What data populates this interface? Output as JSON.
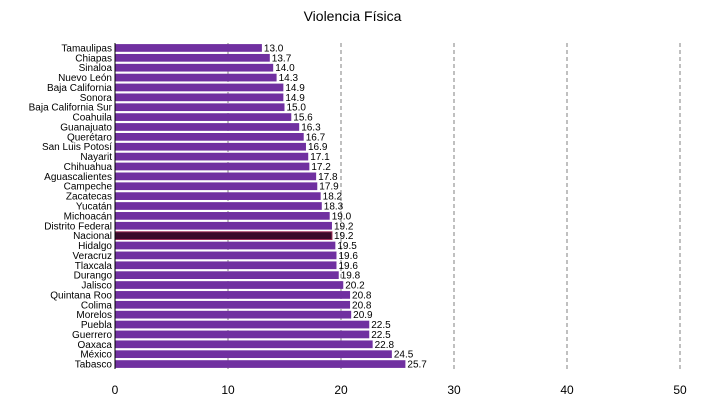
{
  "chart_data": {
    "type": "bar",
    "orientation": "horizontal",
    "title": "Violencia Física",
    "xlabel": "",
    "ylabel": "",
    "xlim": [
      0,
      50
    ],
    "x_ticks": [
      "0",
      "10",
      "20",
      "30",
      "40",
      "50"
    ],
    "grid": "vertical dashed",
    "colors": {
      "bar": "#7030A0",
      "highlight": "#3a0a2a",
      "highlight_edge": "#a0305a"
    },
    "highlight_category": "Nacional",
    "categories": [
      "Tamaulipas",
      "Chiapas",
      "Sinaloa",
      "Nuevo León",
      "Baja California",
      "Sonora",
      "Baja California Sur",
      "Coahuila",
      "Guanajuato",
      "Querétaro",
      "San Luis Potosí",
      "Nayarit",
      "Chihuahua",
      "Aguascalientes",
      "Campeche",
      "Zacatecas",
      "Yucatán",
      "Michoacán",
      "Distrito Federal",
      "Nacional",
      "Hidalgo",
      "Veracruz",
      "Tlaxcala",
      "Durango",
      "Jalisco",
      "Quintana Roo",
      "Colima",
      "Morelos",
      "Puebla",
      "Guerrero",
      "Oaxaca",
      "México",
      "Tabasco"
    ],
    "values": [
      13.0,
      13.7,
      14.0,
      14.3,
      14.9,
      14.9,
      15.0,
      15.6,
      16.3,
      16.7,
      16.9,
      17.1,
      17.2,
      17.8,
      17.9,
      18.2,
      18.3,
      19.0,
      19.2,
      19.2,
      19.5,
      19.6,
      19.6,
      19.8,
      20.2,
      20.8,
      20.8,
      20.9,
      22.5,
      22.5,
      22.8,
      24.5,
      25.7
    ],
    "value_labels": [
      "13.0",
      "13.7",
      "14.0",
      "14.3",
      "14.9",
      "14.9",
      "15.0",
      "15.6",
      "16.3",
      "16.7",
      "16.9",
      "17.1",
      "17.2",
      "17.8",
      "17.9",
      "18.2",
      "18.3",
      "19.0",
      "19.2",
      "19.2",
      "19.5",
      "19.6",
      "19.6",
      "19.8",
      "20.2",
      "20.8",
      "20.8",
      "20.9",
      "22.5",
      "22.5",
      "22.8",
      "24.5",
      "25.7"
    ]
  }
}
